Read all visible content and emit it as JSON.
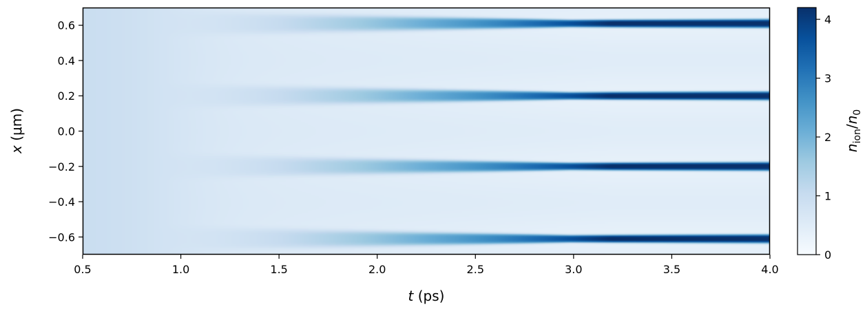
{
  "chart_data": {
    "type": "heatmap",
    "title": "",
    "xlabel": {
      "var": "t",
      "unit": " (ps)"
    },
    "ylabel": {
      "var": "x",
      "unit": " (μm)"
    },
    "xlim": [
      0.5,
      4.0
    ],
    "ylim": [
      -0.7,
      0.7
    ],
    "x_ticks": [
      0.5,
      1.0,
      1.5,
      2.0,
      2.5,
      3.0,
      3.5,
      4.0
    ],
    "x_tick_labels": [
      "0.5",
      "1.0",
      "1.5",
      "2.0",
      "2.5",
      "3.0",
      "3.5",
      "4.0"
    ],
    "y_ticks": [
      0.6,
      0.4,
      0.2,
      0.0,
      -0.2,
      -0.4,
      -0.6
    ],
    "y_tick_labels": [
      "0.6",
      "0.4",
      "0.2",
      "0.0",
      "−0.2",
      "−0.4",
      "−0.6"
    ],
    "colormap": "Blues",
    "colorbar": {
      "label": {
        "main": "n",
        "sub1": "ion",
        "sep": "/",
        "main2": "n",
        "sub2": "0"
      },
      "range": [
        0,
        4.2
      ],
      "ticks": [
        0,
        1,
        2,
        3,
        4
      ],
      "tick_labels": [
        "0",
        "1",
        "2",
        "3",
        "4"
      ]
    },
    "field": {
      "background_level": 0.6,
      "initial_level": 1.0,
      "filaments": [
        {
          "x": 0.61,
          "onset_t": 0.8,
          "peak_t": 3.2,
          "peak_value": 4.0
        },
        {
          "x": 0.2,
          "onset_t": 0.8,
          "peak_t": 3.2,
          "peak_value": 4.0
        },
        {
          "x": -0.2,
          "onset_t": 0.8,
          "peak_t": 3.2,
          "peak_value": 4.0
        },
        {
          "x": -0.61,
          "onset_t": 0.8,
          "peak_t": 3.2,
          "peak_value": 4.0
        }
      ]
    },
    "grid": false
  }
}
